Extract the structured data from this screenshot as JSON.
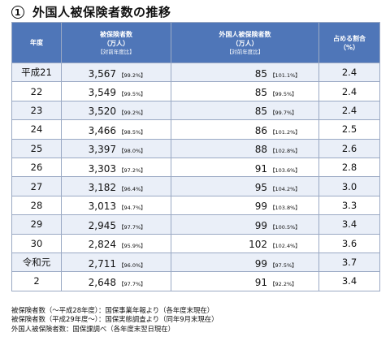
{
  "title": {
    "number": "1",
    "text": "外国人被保険者数の推移"
  },
  "table": {
    "headers": {
      "year": "年度",
      "insured_main": "被保険者数",
      "insured_unit": "（万人）",
      "insured_sub": "【対前年度比】",
      "foreign_main": "外国人被保険者数",
      "foreign_unit": "（万人）",
      "foreign_sub": "【対前年度比】",
      "ratio_main": "占める割合",
      "ratio_unit": "（%）"
    },
    "rows": [
      {
        "year": "平成21",
        "insured": "3,567",
        "insured_ratio": "【99.2%】",
        "foreign": "85",
        "foreign_ratio": "【101.1%】",
        "share": "2.4"
      },
      {
        "year": "22",
        "insured": "3,549",
        "insured_ratio": "【99.5%】",
        "foreign": "85",
        "foreign_ratio": "【99.5%】",
        "share": "2.4"
      },
      {
        "year": "23",
        "insured": "3,520",
        "insured_ratio": "【99.2%】",
        "foreign": "85",
        "foreign_ratio": "【99.7%】",
        "share": "2.4"
      },
      {
        "year": "24",
        "insured": "3,466",
        "insured_ratio": "【98.5%】",
        "foreign": "86",
        "foreign_ratio": "【101.2%】",
        "share": "2.5"
      },
      {
        "year": "25",
        "insured": "3,397",
        "insured_ratio": "【98.0%】",
        "foreign": "88",
        "foreign_ratio": "【102.8%】",
        "share": "2.6"
      },
      {
        "year": "26",
        "insured": "3,303",
        "insured_ratio": "【97.2%】",
        "foreign": "91",
        "foreign_ratio": "【103.6%】",
        "share": "2.8"
      },
      {
        "year": "27",
        "insured": "3,182",
        "insured_ratio": "【96.4%】",
        "foreign": "95",
        "foreign_ratio": "【104.2%】",
        "share": "3.0"
      },
      {
        "year": "28",
        "insured": "3,013",
        "insured_ratio": "【94.7%】",
        "foreign": "99",
        "foreign_ratio": "【103.8%】",
        "share": "3.3"
      },
      {
        "year": "29",
        "insured": "2,945",
        "insured_ratio": "【97.7%】",
        "foreign": "99",
        "foreign_ratio": "【100.5%】",
        "share": "3.4"
      },
      {
        "year": "30",
        "insured": "2,824",
        "insured_ratio": "【95.9%】",
        "foreign": "102",
        "foreign_ratio": "【102.4%】",
        "share": "3.6"
      },
      {
        "year": "令和元",
        "insured": "2,711",
        "insured_ratio": "【96.0%】",
        "foreign": "99",
        "foreign_ratio": "【97.5%】",
        "share": "3.7"
      },
      {
        "year": "2",
        "insured": "2,648",
        "insured_ratio": "【97.7%】",
        "foreign": "91",
        "foreign_ratio": "【92.2%】",
        "share": "3.4"
      }
    ]
  },
  "notes": [
    "被保険者数（～平成28年度）：国保事業年報より（各年度末現在）",
    "被保険者数（平成29年度～）：国保実態調査より（同年9月末現在）",
    "外国人被保険者数：国保課調べ（各年度末翌日現在）"
  ]
}
